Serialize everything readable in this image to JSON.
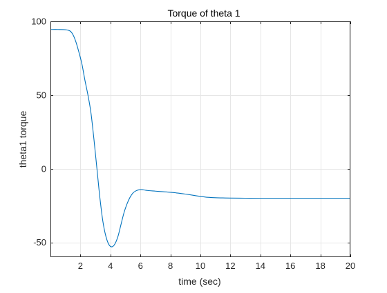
{
  "chart_data": {
    "type": "line",
    "title": "Torque of theta 1",
    "xlabel": "time (sec)",
    "ylabel": "theta1 torque",
    "xlim": [
      0,
      20
    ],
    "ylim": [
      -60,
      100
    ],
    "xticks": [
      2,
      4,
      6,
      8,
      10,
      12,
      14,
      16,
      18,
      20
    ],
    "yticks": [
      -50,
      0,
      50,
      100
    ],
    "xtick_labels": [
      "2",
      "4",
      "6",
      "8",
      "10",
      "12",
      "14",
      "16",
      "18",
      "20"
    ],
    "ytick_labels": [
      "-50",
      "0",
      "50",
      "100"
    ],
    "grid": true,
    "line_color": "#0072BD",
    "series": [
      {
        "x": [
          0,
          0.5,
          1.0,
          1.3,
          1.5,
          1.7,
          1.9,
          2.1,
          2.3,
          2.5,
          2.7,
          2.9,
          3.1,
          3.3,
          3.5,
          3.7,
          3.9,
          4.1,
          4.3,
          4.5,
          4.7,
          4.9,
          5.1,
          5.3,
          5.5,
          5.7,
          5.9,
          6.1,
          6.3,
          6.5,
          7.0,
          7.5,
          8.0,
          8.5,
          9.0,
          9.5,
          10.0,
          10.5,
          11.0,
          11.5,
          12.0,
          13.0,
          14.0,
          16.0,
          18.0,
          20.0
        ],
        "y": [
          94.5,
          94.5,
          94.3,
          93.5,
          91.0,
          86.0,
          79.0,
          71.0,
          60.0,
          50.0,
          38.0,
          20.0,
          0.0,
          -20.0,
          -36.0,
          -46.0,
          -51.5,
          -53.0,
          -51.0,
          -46.0,
          -38.0,
          -30.0,
          -24.0,
          -19.5,
          -16.5,
          -15.0,
          -14.3,
          -14.2,
          -14.5,
          -14.8,
          -15.2,
          -15.6,
          -16.0,
          -16.5,
          -17.2,
          -18.0,
          -18.8,
          -19.4,
          -19.7,
          -19.8,
          -19.9,
          -20.0,
          -20.0,
          -20.0,
          -20.0,
          -20.0
        ]
      }
    ]
  }
}
